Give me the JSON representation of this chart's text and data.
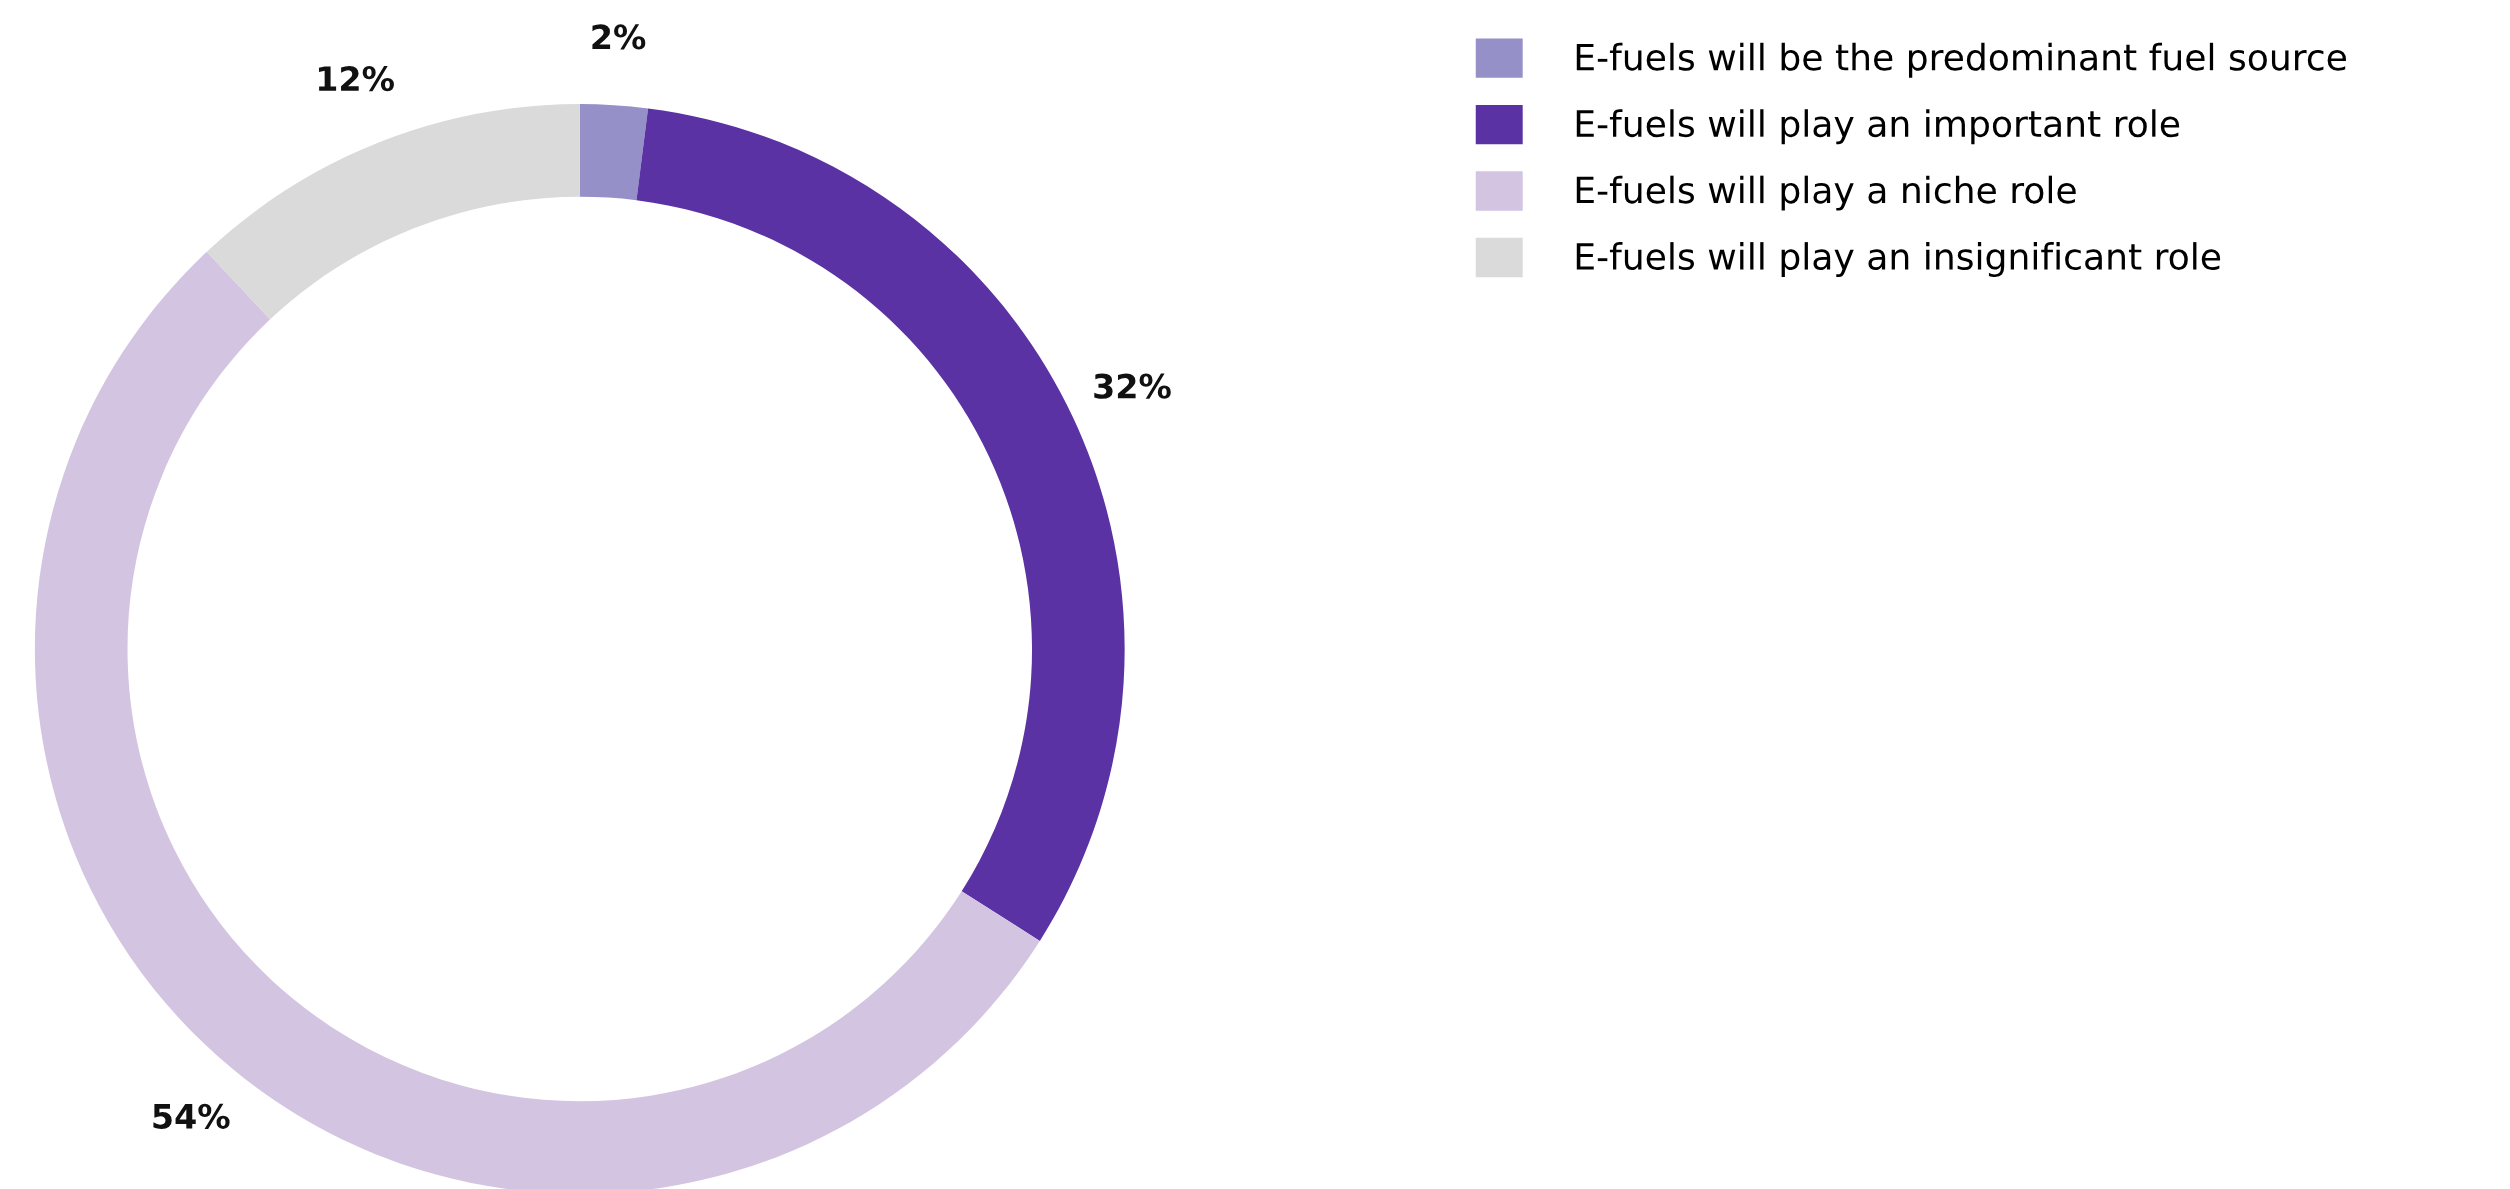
{
  "chart_data": {
    "type": "donut",
    "categories": [
      "E-fuels will be the predominant fuel source",
      "E-fuels will play an important role",
      "E-fuels will play a niche role",
      "E-fuels will play an insignificant role"
    ],
    "values": [
      2,
      32,
      54,
      12
    ],
    "colors": [
      "#9590c8",
      "#5b32a4",
      "#d3c4e1",
      "#dadada"
    ],
    "data_labels": true,
    "value_labels": [
      "2%",
      "32%",
      "54%",
      "12%"
    ],
    "legend": "top right"
  }
}
